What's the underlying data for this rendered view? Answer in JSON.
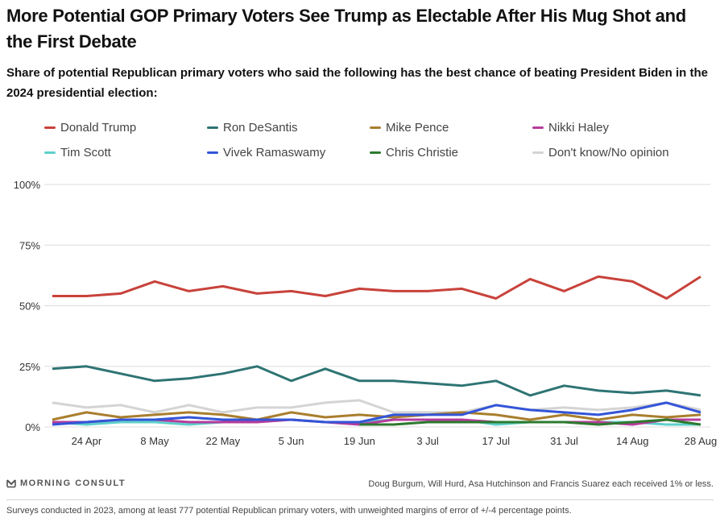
{
  "header": {
    "title": "More Potential GOP Primary Voters See Trump as Electable After His Mug Shot and the First Debate",
    "subtitle": "Share of potential Republican primary voters who said the following has the best chance of beating President Biden in the 2024 presidential election:"
  },
  "legend": [
    {
      "label": "Donald Trump",
      "color": "#c8423b"
    },
    {
      "label": "Ron DeSantis",
      "color": "#2e7473"
    },
    {
      "label": "Mike Pence",
      "color": "#a97e2e"
    },
    {
      "label": "Nikki Haley",
      "color": "#b63c9c"
    },
    {
      "label": "Tim Scott",
      "color": "#5ecfcb"
    },
    {
      "label": "Vivek Ramaswamy",
      "color": "#3355d8"
    },
    {
      "label": "Chris Christie",
      "color": "#2c7a2e"
    },
    {
      "label": "Don't know/No opinion",
      "color": "#d4d4d4"
    }
  ],
  "chart_data": {
    "type": "line",
    "title": "More Potential GOP Primary Voters See Trump as Electable After His Mug Shot and the First Debate",
    "subtitle": "Share of potential Republican primary voters who said the following has the best chance of beating President Biden in the 2024 presidential election:",
    "xlabel": "",
    "ylabel": "",
    "ylim": [
      0,
      100
    ],
    "yticks": [
      0,
      25,
      50,
      75,
      100
    ],
    "ytick_labels": [
      "0%",
      "25%",
      "50%",
      "75%",
      "100%"
    ],
    "x_tick_labels": [
      "24 Apr",
      "8 May",
      "22 May",
      "5 Jun",
      "19 Jun",
      "3 Jul",
      "17 Jul",
      "31 Jul",
      "14 Aug",
      "28 Aug"
    ],
    "x_tick_indices": [
      1,
      3,
      5,
      7,
      9,
      11,
      13,
      15,
      17,
      19
    ],
    "num_points": 20,
    "grid": true,
    "legend_position": "top",
    "series": [
      {
        "name": "Don't know/No opinion",
        "color": "#d4d4d4",
        "values": [
          10,
          8,
          9,
          6,
          9,
          6,
          8,
          8,
          10,
          11,
          6,
          6,
          6,
          9,
          7,
          8,
          7,
          8,
          10,
          7
        ]
      },
      {
        "name": "Tim Scott",
        "color": "#5ecfcb",
        "values": [
          2,
          1,
          2,
          2,
          1,
          2,
          3,
          3,
          2,
          2,
          3,
          3,
          3,
          1,
          2,
          2,
          2,
          2,
          1,
          1
        ]
      },
      {
        "name": "Nikki Haley",
        "color": "#b63c9c",
        "values": [
          2,
          2,
          3,
          3,
          2,
          2,
          2,
          3,
          2,
          1,
          3,
          3,
          3,
          2,
          2,
          2,
          2,
          1,
          3,
          3
        ]
      },
      {
        "name": "Chris Christie",
        "color": "#2c7a2e",
        "values": [
          null,
          null,
          null,
          null,
          null,
          null,
          null,
          null,
          null,
          1,
          1,
          2,
          2,
          2,
          2,
          2,
          1,
          2,
          3,
          1
        ]
      },
      {
        "name": "Mike Pence",
        "color": "#a97e2e",
        "values": [
          3,
          6,
          4,
          5,
          6,
          5,
          3,
          6,
          4,
          5,
          4,
          5,
          6,
          5,
          3,
          5,
          3,
          5,
          4,
          5
        ]
      },
      {
        "name": "Vivek Ramaswamy",
        "color": "#3355d8",
        "values": [
          1,
          2,
          3,
          3,
          4,
          3,
          3,
          3,
          2,
          2,
          5,
          5,
          5,
          9,
          7,
          6,
          5,
          7,
          10,
          6
        ]
      },
      {
        "name": "Ron DeSantis",
        "color": "#2e7473",
        "values": [
          24,
          25,
          22,
          19,
          20,
          22,
          25,
          19,
          24,
          19,
          19,
          18,
          17,
          19,
          13,
          17,
          15,
          14,
          15,
          13
        ]
      },
      {
        "name": "Donald Trump",
        "color": "#c8423b",
        "values": [
          54,
          54,
          55,
          60,
          56,
          58,
          55,
          56,
          54,
          57,
          56,
          56,
          57,
          53,
          61,
          56,
          62,
          60,
          53,
          62
        ]
      }
    ]
  },
  "footer": {
    "brand": "MORNING CONSULT",
    "note": "Doug Burgum, Will Hurd, Asa Hutchinson and Francis Suarez each received 1% or less.",
    "methodology": "Surveys conducted in 2023, among at least 777 potential Republican primary voters, with unweighted margins of error of +/-4 percentage points."
  }
}
